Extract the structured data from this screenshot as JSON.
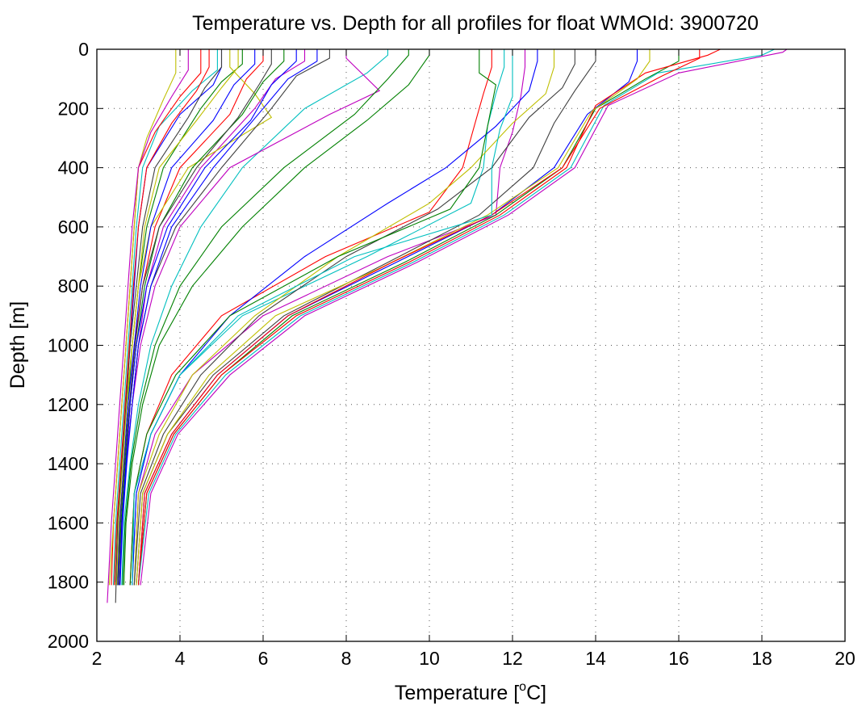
{
  "chart_data": {
    "type": "line",
    "title": "Temperature vs. Depth for all profiles for float WMOId: 3900720",
    "xlabel": "Temperature [°C]",
    "xlabel_main": "Temperature [",
    "xlabel_sup": "o",
    "xlabel_unit": "C]",
    "ylabel": "Depth [m]",
    "xlim": [
      2,
      20
    ],
    "ylim": [
      0,
      2000
    ],
    "y_reversed": true,
    "grid": true,
    "legend": "none",
    "xticks": [
      2,
      4,
      6,
      8,
      10,
      12,
      14,
      16,
      18,
      20
    ],
    "yticks": [
      0,
      200,
      400,
      600,
      800,
      1000,
      1200,
      1400,
      1600,
      1800,
      2000
    ],
    "xtick_labels": [
      "2",
      "4",
      "6",
      "8",
      "10",
      "12",
      "14",
      "16",
      "18",
      "20"
    ],
    "ytick_labels": [
      "0",
      "200",
      "400",
      "600",
      "800",
      "1000",
      "1200",
      "1400",
      "1600",
      "1800",
      "2000"
    ],
    "colors": [
      "#0000ff",
      "#008000",
      "#ff0000",
      "#00bfbf",
      "#bf00bf",
      "#bfbf00",
      "#404040"
    ],
    "series": [
      {
        "x": [
          5.0,
          5.0,
          4.8,
          4.0,
          3.2,
          3.0,
          2.9,
          2.8,
          2.7,
          2.6,
          2.5,
          2.45
        ],
        "y": [
          0,
          60,
          120,
          220,
          400,
          600,
          800,
          1000,
          1200,
          1400,
          1600,
          1800
        ]
      },
      {
        "x": [
          5.5,
          5.5,
          5.0,
          4.5,
          3.6,
          3.2,
          3.0,
          2.85,
          2.75,
          2.65,
          2.55,
          2.5
        ],
        "y": [
          0,
          50,
          110,
          200,
          400,
          600,
          800,
          1000,
          1200,
          1400,
          1600,
          1810
        ]
      },
      {
        "x": [
          6.0,
          6.0,
          5.6,
          5.2,
          4.0,
          3.4,
          3.1,
          2.9,
          2.8,
          2.7,
          2.6,
          2.55
        ],
        "y": [
          0,
          40,
          100,
          220,
          400,
          600,
          800,
          1000,
          1200,
          1400,
          1600,
          1810
        ]
      },
      {
        "x": [
          4.9,
          4.9,
          4.3,
          3.5,
          3.1,
          2.95,
          2.85,
          2.75,
          2.65,
          2.55,
          2.45,
          2.4
        ],
        "y": [
          0,
          70,
          140,
          260,
          400,
          600,
          800,
          1000,
          1200,
          1400,
          1600,
          1810
        ]
      },
      {
        "x": [
          7.0,
          7.0,
          6.3,
          5.8,
          4.5,
          3.6,
          3.2,
          3.0,
          2.85,
          2.7,
          2.6,
          2.55
        ],
        "y": [
          0,
          40,
          100,
          200,
          400,
          600,
          800,
          1000,
          1200,
          1400,
          1600,
          1810
        ]
      },
      {
        "x": [
          5.2,
          5.2,
          5.8,
          6.2,
          4.2,
          3.3,
          3.0,
          2.85,
          2.7,
          2.6,
          2.5,
          2.45
        ],
        "y": [
          0,
          60,
          150,
          230,
          400,
          600,
          800,
          1000,
          1200,
          1400,
          1600,
          1810
        ]
      },
      {
        "x": [
          7.6,
          7.6,
          6.8,
          6.2,
          5.0,
          3.9,
          3.3,
          3.0,
          2.85,
          2.7,
          2.6,
          2.55
        ],
        "y": [
          0,
          30,
          90,
          200,
          400,
          600,
          800,
          1000,
          1200,
          1400,
          1600,
          1810
        ]
      },
      {
        "x": [
          5.8,
          5.8,
          5.3,
          4.8,
          3.8,
          3.3,
          3.05,
          2.9,
          2.75,
          2.65,
          2.55,
          2.5
        ],
        "y": [
          0,
          50,
          120,
          240,
          400,
          600,
          800,
          1000,
          1200,
          1400,
          1600,
          1810
        ]
      },
      {
        "x": [
          6.5,
          6.5,
          6.0,
          5.5,
          4.3,
          3.5,
          3.15,
          2.95,
          2.8,
          2.68,
          2.58,
          2.52
        ],
        "y": [
          0,
          40,
          110,
          220,
          400,
          600,
          800,
          1000,
          1200,
          1400,
          1600,
          1810
        ]
      },
      {
        "x": [
          4.5,
          4.5,
          4.0,
          3.4,
          3.0,
          2.9,
          2.8,
          2.7,
          2.6,
          2.5,
          2.4,
          2.35
        ],
        "y": [
          0,
          80,
          160,
          280,
          400,
          600,
          800,
          1000,
          1200,
          1400,
          1600,
          1810
        ]
      },
      {
        "x": [
          9.0,
          9.0,
          8.5,
          7.0,
          5.5,
          4.5,
          3.8,
          3.3,
          3.0,
          2.8,
          2.65,
          2.6
        ],
        "y": [
          0,
          20,
          80,
          200,
          400,
          600,
          800,
          1000,
          1200,
          1400,
          1600,
          1810
        ]
      },
      {
        "x": [
          8.0,
          8.0,
          8.8,
          7.6,
          5.2,
          4.0,
          3.4,
          3.05,
          2.85,
          2.7,
          2.6,
          2.55
        ],
        "y": [
          0,
          30,
          140,
          220,
          400,
          600,
          800,
          1000,
          1200,
          1400,
          1600,
          1810
        ]
      },
      {
        "x": [
          3.9,
          3.9,
          3.6,
          3.2,
          3.0,
          2.9,
          2.8,
          2.7,
          2.6,
          2.5,
          2.4,
          2.3
        ],
        "y": [
          0,
          80,
          170,
          300,
          400,
          600,
          800,
          1000,
          1200,
          1400,
          1600,
          1810
        ]
      },
      {
        "x": [
          5.0,
          5.0,
          4.6,
          4.2,
          3.4,
          3.1,
          2.95,
          2.8,
          2.7,
          2.6,
          2.5,
          2.45
        ],
        "y": [
          0,
          60,
          130,
          230,
          400,
          600,
          800,
          1000,
          1200,
          1400,
          1600,
          1870
        ]
      },
      {
        "x": [
          6.8,
          6.8,
          6.2,
          5.7,
          4.6,
          3.7,
          3.2,
          2.95,
          2.8,
          2.7,
          2.6,
          2.55
        ],
        "y": [
          0,
          40,
          120,
          240,
          400,
          600,
          800,
          1000,
          1200,
          1400,
          1600,
          1810
        ]
      },
      {
        "x": [
          10.0,
          10.0,
          9.5,
          8.5,
          7.0,
          5.5,
          4.3,
          3.5,
          3.1,
          2.85,
          2.7,
          2.65
        ],
        "y": [
          0,
          20,
          120,
          240,
          400,
          600,
          800,
          1000,
          1200,
          1400,
          1600,
          1810
        ]
      },
      {
        "x": [
          11.5,
          11.5,
          11.3,
          11.1,
          10.8,
          10.0,
          7.5,
          5.0,
          3.8,
          3.2,
          2.9,
          2.8
        ],
        "y": [
          0,
          60,
          150,
          250,
          400,
          550,
          700,
          900,
          1100,
          1300,
          1500,
          1810
        ]
      },
      {
        "x": [
          11.8,
          11.8,
          11.6,
          11.4,
          11.3,
          11.0,
          8.5,
          5.5,
          4.0,
          3.3,
          2.95,
          2.85
        ],
        "y": [
          0,
          60,
          150,
          260,
          400,
          520,
          700,
          900,
          1100,
          1300,
          1500,
          1810
        ]
      },
      {
        "x": [
          12.3,
          12.3,
          12.2,
          12.0,
          11.7,
          11.6,
          9.0,
          6.0,
          4.3,
          3.4,
          3.0,
          2.9
        ],
        "y": [
          0,
          60,
          160,
          280,
          400,
          560,
          700,
          900,
          1100,
          1300,
          1500,
          1810
        ]
      },
      {
        "x": [
          13.0,
          13.0,
          12.8,
          12.0,
          11.0,
          10.0,
          7.8,
          5.8,
          4.3,
          3.5,
          3.0,
          2.9
        ],
        "y": [
          0,
          60,
          150,
          250,
          400,
          520,
          700,
          900,
          1100,
          1300,
          1500,
          1810
        ]
      },
      {
        "x": [
          14.0,
          14.0,
          13.5,
          13.0,
          12.5,
          11.2,
          9.0,
          6.5,
          4.8,
          3.7,
          3.1,
          2.95
        ],
        "y": [
          0,
          40,
          140,
          250,
          400,
          560,
          720,
          900,
          1100,
          1300,
          1500,
          1810
        ]
      },
      {
        "x": [
          15.0,
          15.0,
          14.8,
          13.8,
          13.0,
          11.5,
          9.2,
          6.6,
          4.9,
          3.8,
          3.15,
          3.0
        ],
        "y": [
          0,
          40,
          110,
          220,
          400,
          560,
          720,
          900,
          1100,
          1300,
          1500,
          1810
        ]
      },
      {
        "x": [
          16.0,
          16.0,
          15.2,
          14.0,
          13.2,
          11.6,
          9.4,
          6.7,
          5.0,
          3.85,
          3.2,
          3.0
        ],
        "y": [
          0,
          40,
          100,
          200,
          400,
          560,
          720,
          900,
          1100,
          1300,
          1500,
          1810
        ]
      },
      {
        "x": [
          17.0,
          16.7,
          15.2,
          14.0,
          13.3,
          11.7,
          9.5,
          6.8,
          5.0,
          3.85,
          3.2,
          3.0
        ],
        "y": [
          0,
          20,
          80,
          190,
          400,
          560,
          720,
          900,
          1100,
          1300,
          1500,
          1810
        ]
      },
      {
        "x": [
          18.3,
          18.0,
          15.5,
          14.2,
          13.4,
          11.8,
          9.6,
          6.9,
          5.1,
          3.9,
          3.25,
          3.0
        ],
        "y": [
          0,
          20,
          80,
          190,
          400,
          560,
          720,
          900,
          1100,
          1300,
          1500,
          1810
        ]
      },
      {
        "x": [
          18.6,
          18.5,
          16.0,
          14.3,
          13.5,
          11.9,
          9.7,
          7.0,
          5.2,
          3.95,
          3.3,
          3.05
        ],
        "y": [
          0,
          10,
          80,
          190,
          400,
          560,
          720,
          900,
          1100,
          1300,
          1500,
          1810
        ]
      },
      {
        "x": [
          15.3,
          15.3,
          15.0,
          13.9,
          13.1,
          11.4,
          8.8,
          6.3,
          4.7,
          3.7,
          3.1,
          2.95
        ],
        "y": [
          0,
          40,
          100,
          210,
          400,
          560,
          740,
          900,
          1100,
          1300,
          1500,
          1810
        ]
      },
      {
        "x": [
          13.5,
          13.5,
          13.2,
          12.4,
          11.5,
          10.2,
          8.0,
          5.9,
          4.5,
          3.6,
          3.05,
          2.9
        ],
        "y": [
          0,
          50,
          130,
          230,
          400,
          540,
          700,
          900,
          1100,
          1300,
          1500,
          1810
        ]
      },
      {
        "x": [
          12.6,
          12.6,
          12.4,
          11.6,
          10.4,
          9.0,
          7.0,
          5.2,
          4.0,
          3.3,
          2.95,
          2.85
        ],
        "y": [
          0,
          40,
          140,
          260,
          400,
          520,
          700,
          900,
          1100,
          1300,
          1500,
          1810
        ]
      },
      {
        "x": [
          11.2,
          11.2,
          11.6,
          11.4,
          11.2,
          10.5,
          7.8,
          5.2,
          3.9,
          3.2,
          2.9,
          2.8
        ],
        "y": [
          0,
          80,
          120,
          260,
          400,
          540,
          700,
          900,
          1100,
          1300,
          1500,
          1810
        ]
      },
      {
        "x": [
          16.5,
          16.5,
          15.6,
          14.1,
          13.2,
          11.5,
          9.1,
          6.6,
          4.9,
          3.8,
          3.15,
          3.0
        ],
        "y": [
          0,
          30,
          90,
          200,
          400,
          560,
          720,
          900,
          1100,
          1300,
          1500,
          1810
        ]
      },
      {
        "x": [
          12.0,
          12.0,
          12.0,
          11.7,
          11.5,
          11.5,
          8.2,
          5.4,
          4.0,
          3.3,
          2.9,
          2.85
        ],
        "y": [
          0,
          60,
          160,
          270,
          400,
          560,
          700,
          900,
          1100,
          1300,
          1500,
          1810
        ]
      },
      {
        "x": [
          4.2,
          4.2,
          3.8,
          3.3,
          3.0,
          2.85,
          2.75,
          2.65,
          2.55,
          2.45,
          2.35,
          2.25
        ],
        "y": [
          0,
          70,
          160,
          280,
          400,
          600,
          800,
          1000,
          1200,
          1400,
          1600,
          1870
        ]
      },
      {
        "x": [
          5.4,
          5.4,
          5.0,
          4.4,
          3.5,
          3.15,
          3.0,
          2.85,
          2.72,
          2.62,
          2.52,
          2.48
        ],
        "y": [
          0,
          60,
          130,
          240,
          400,
          600,
          800,
          1000,
          1200,
          1400,
          1600,
          1810
        ]
      },
      {
        "x": [
          6.2,
          6.2,
          5.9,
          5.4,
          4.4,
          3.5,
          3.1,
          2.92,
          2.78,
          2.66,
          2.56,
          2.52
        ],
        "y": [
          0,
          50,
          120,
          230,
          400,
          600,
          800,
          1000,
          1200,
          1400,
          1600,
          1810
        ]
      },
      {
        "x": [
          7.3,
          7.3,
          6.6,
          6.0,
          4.8,
          3.8,
          3.3,
          3.0,
          2.85,
          2.72,
          2.62,
          2.56
        ],
        "y": [
          0,
          40,
          100,
          200,
          400,
          600,
          800,
          1000,
          1200,
          1400,
          1600,
          1810
        ]
      },
      {
        "x": [
          9.5,
          9.5,
          9.0,
          8.2,
          6.5,
          5.0,
          4.0,
          3.4,
          3.05,
          2.82,
          2.68,
          2.62
        ],
        "y": [
          0,
          20,
          100,
          220,
          400,
          600,
          800,
          1000,
          1200,
          1400,
          1600,
          1810
        ]
      },
      {
        "x": [
          4.7,
          4.7,
          4.4,
          3.8,
          3.2,
          3.0,
          2.88,
          2.78,
          2.68,
          2.58,
          2.48,
          2.42
        ],
        "y": [
          0,
          60,
          140,
          250,
          400,
          600,
          800,
          1000,
          1200,
          1400,
          1600,
          1810
        ]
      }
    ]
  }
}
